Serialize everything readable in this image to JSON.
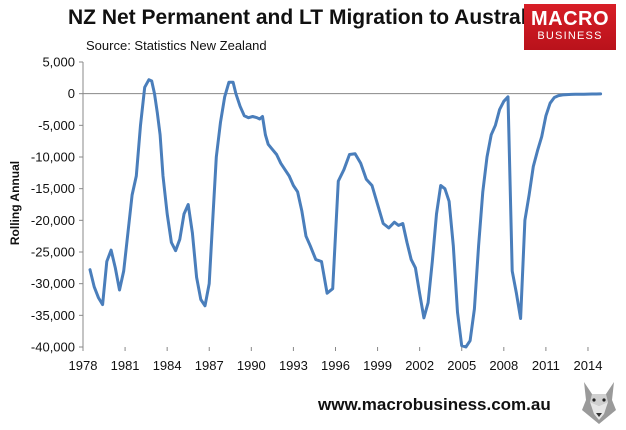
{
  "title": "NZ Net Permanent and LT Migration to Australia",
  "subtitle": "Source: Statistics New Zealand",
  "logo": {
    "line1": "MACRO",
    "line2": "BUSINESS",
    "color": "#d81e27"
  },
  "footer": "www.macrobusiness.com.au",
  "chart_data": {
    "type": "line",
    "title": "NZ Net Permanent and LT Migration to Australia",
    "subtitle": "Source: Statistics New Zealand",
    "xlabel": "",
    "ylabel": "Rolling Annual",
    "xlim": [
      1978,
      2015
    ],
    "ylim": [
      -40000,
      5000
    ],
    "yticks": [
      5000,
      0,
      -5000,
      -10000,
      -15000,
      -20000,
      -25000,
      -30000,
      -35000,
      -40000
    ],
    "ytick_labels": [
      "5,000",
      "0",
      "-5,000",
      "-10,000",
      "-15,000",
      "-20,000",
      "-25,000",
      "-30,000",
      "-35,000",
      "-40,000"
    ],
    "xticks": [
      1978,
      1981,
      1984,
      1987,
      1990,
      1993,
      1996,
      1999,
      2002,
      2005,
      2008,
      2011,
      2014
    ],
    "xtick_labels": [
      "1978",
      "1981",
      "1984",
      "1987",
      "1990",
      "1993",
      "1996",
      "1999",
      "2002",
      "2005",
      "2008",
      "2011",
      "2014"
    ],
    "grid": false,
    "legend": "none",
    "series": [
      {
        "color": "#4a7ebb",
        "x": [
          1978.5,
          1978.8,
          1979.1,
          1979.4,
          1979.7,
          1980.0,
          1980.3,
          1980.6,
          1980.9,
          1981.2,
          1981.5,
          1981.8,
          1982.1,
          1982.4,
          1982.7,
          1982.9,
          1983.1,
          1983.3,
          1983.5,
          1983.7,
          1984.0,
          1984.3,
          1984.6,
          1984.9,
          1985.2,
          1985.5,
          1985.8,
          1986.1,
          1986.4,
          1986.7,
          1987.0,
          1987.2,
          1987.5,
          1987.8,
          1988.1,
          1988.4,
          1988.7,
          1988.9,
          1989.2,
          1989.5,
          1989.8,
          1990.1,
          1990.4,
          1990.6,
          1990.8,
          1991.0,
          1991.2,
          1991.5,
          1991.8,
          1992.1,
          1992.4,
          1992.7,
          1993.0,
          1993.3,
          1993.6,
          1993.9,
          1994.2,
          1994.6,
          1995.0,
          1995.4,
          1995.8,
          1996.2,
          1996.6,
          1997.0,
          1997.4,
          1997.8,
          1998.2,
          1998.6,
          1999.0,
          1999.4,
          1999.8,
          2000.2,
          2000.5,
          2000.8,
          2001.1,
          2001.4,
          2001.7,
          2002.0,
          2002.3,
          2002.6,
          2002.9,
          2003.2,
          2003.5,
          2003.8,
          2004.1,
          2004.4,
          2004.7,
          2005.0,
          2005.3,
          2005.6,
          2005.9,
          2006.2,
          2006.5,
          2006.8,
          2007.1,
          2007.4,
          2007.7,
          2008.0,
          2008.3,
          2008.6,
          2008.9,
          2009.2,
          2009.5,
          2009.8,
          2010.1,
          2010.4,
          2010.7,
          2011.0,
          2011.3,
          2011.6,
          2011.9,
          2012.2,
          2012.5,
          2012.8,
          2013.1,
          2013.4,
          2013.7,
          2014.0,
          2014.3,
          2014.6,
          2014.9
        ],
        "y": [
          -27800,
          -30500,
          -32200,
          -33300,
          -26500,
          -24700,
          -27500,
          -31000,
          -28000,
          -22000,
          -16000,
          -13000,
          -5000,
          1000,
          2200,
          2000,
          0,
          -3000,
          -6500,
          -13000,
          -19000,
          -23500,
          -24800,
          -23000,
          -19000,
          -17500,
          -22000,
          -29000,
          -32500,
          -33500,
          -30000,
          -22000,
          -10000,
          -4500,
          -500,
          1800,
          1800,
          0,
          -2000,
          -3500,
          -3800,
          -3600,
          -3800,
          -4000,
          -3600,
          -6500,
          -8000,
          -8800,
          -9600,
          -11000,
          -12000,
          -13000,
          -14500,
          -15500,
          -18500,
          -22500,
          -24000,
          -26200,
          -26500,
          -31500,
          -30800,
          -13800,
          -12000,
          -9600,
          -9500,
          -11000,
          -13500,
          -14500,
          -17500,
          -20500,
          -21200,
          -20300,
          -20800,
          -20500,
          -23500,
          -26200,
          -27500,
          -31500,
          -35400,
          -33000,
          -26500,
          -19000,
          -14500,
          -15000,
          -17000,
          -24000,
          -34500,
          -39800,
          -40000,
          -39000,
          -34000,
          -24000,
          -15500,
          -10000,
          -6500,
          -5000,
          -2500,
          -1200,
          -500,
          -28000,
          -31500,
          -35500,
          -20000,
          -16000,
          -11500,
          -9000,
          -6800,
          -3500,
          -1500,
          -600,
          -300,
          -200,
          -150,
          -120,
          -100,
          -90,
          -80,
          -70,
          -60,
          -50,
          -40
        ]
      }
    ]
  }
}
